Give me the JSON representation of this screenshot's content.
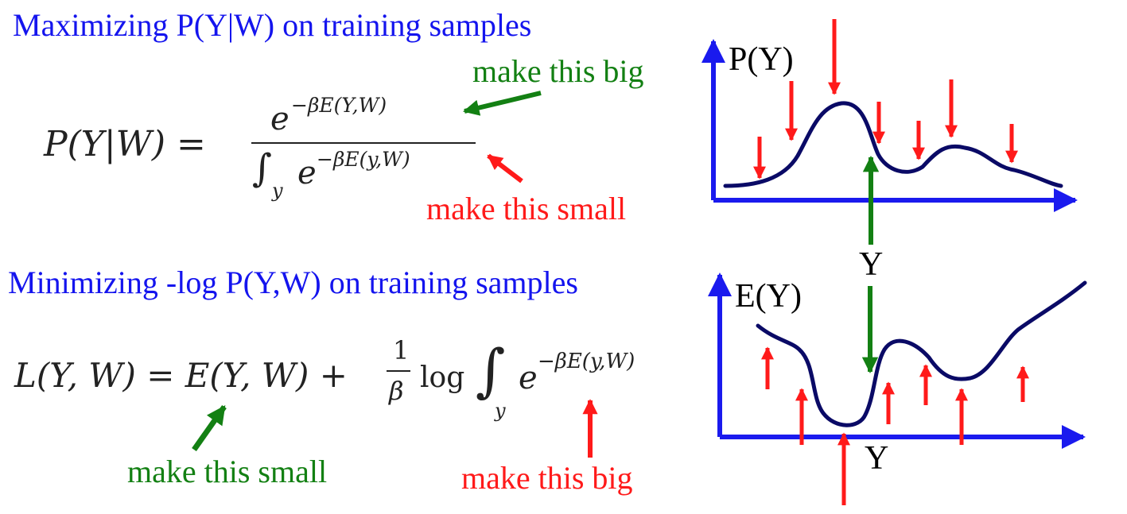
{
  "headings": {
    "top": "Maximizing P(Y|W) on training samples",
    "bottom": "Minimizing -log P(Y,W) on training samples"
  },
  "formula_top": {
    "lhs": "P(Y|W) =",
    "numerator_base": "e",
    "numerator_exp": "−βE(Y,W)",
    "denominator_integral": "∫",
    "denominator_sub": "y",
    "denominator_base": "e",
    "denominator_exp": "−βE(y,W)"
  },
  "formula_bottom": {
    "lhs": "L(Y, W) = E(Y, W) +",
    "frac_num": "1",
    "frac_den": "β",
    "log": "log",
    "integral": "∫",
    "integral_sub": "y",
    "base": "e",
    "exp": "−βE(y,W)"
  },
  "annotations": {
    "top_numerator": "make this big",
    "top_denominator": "make this small",
    "bottom_energy": "make this small",
    "bottom_integral": "make this big"
  },
  "graphs": {
    "top_ylabel": "P(Y)",
    "bottom_ylabel": "E(Y)",
    "middle_label": "Y",
    "bottom_xlabel": "Y"
  },
  "colors": {
    "heading": "#1414ee",
    "green": "#138013",
    "red": "#ff1a1a",
    "axis": "#1a1aee",
    "curve": "#0a0a66"
  }
}
